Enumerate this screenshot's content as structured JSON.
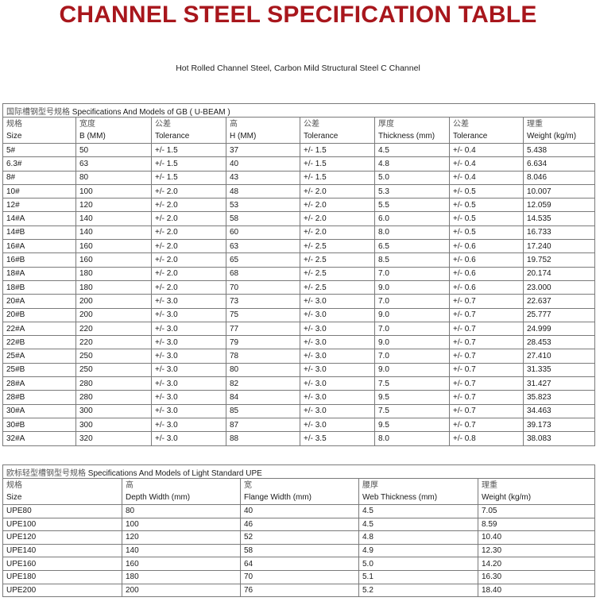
{
  "title": "CHANNEL STEEL SPECIFICATION TABLE",
  "subtitle": "Hot Rolled Channel Steel, Carbon Mild Structural Steel C Channel",
  "gb_table": {
    "caption_zh": "国际槽钢型号规格",
    "caption_en": "Specifications And Models of GB ( U-BEAM )",
    "headers": [
      {
        "zh": "规格",
        "en": "Size"
      },
      {
        "zh": "宽度",
        "en": "B (MM)"
      },
      {
        "zh": "公差",
        "en": "Tolerance"
      },
      {
        "zh": "高",
        "en": "H (MM)"
      },
      {
        "zh": "公差",
        "en": "Tolerance"
      },
      {
        "zh": "厚度",
        "en": "Thickness (mm)"
      },
      {
        "zh": "公差",
        "en": "Tolerance"
      },
      {
        "zh": "理重",
        "en": "Weight (kg/m)"
      }
    ],
    "rows": [
      [
        "5#",
        "50",
        "+/- 1.5",
        "37",
        "+/- 1.5",
        "4.5",
        "+/- 0.4",
        "5.438"
      ],
      [
        "6.3#",
        "63",
        "+/- 1.5",
        "40",
        "+/- 1.5",
        "4.8",
        "+/- 0.4",
        "6.634"
      ],
      [
        "8#",
        "80",
        "+/- 1.5",
        "43",
        "+/- 1.5",
        "5.0",
        "+/- 0.4",
        "8.046"
      ],
      [
        "10#",
        "100",
        "+/- 2.0",
        "48",
        "+/- 2.0",
        "5.3",
        "+/- 0.5",
        "10.007"
      ],
      [
        "12#",
        "120",
        "+/- 2.0",
        "53",
        "+/- 2.0",
        "5.5",
        "+/- 0.5",
        "12.059"
      ],
      [
        "14#A",
        "140",
        "+/- 2.0",
        "58",
        "+/- 2.0",
        "6.0",
        "+/- 0.5",
        "14.535"
      ],
      [
        "14#B",
        "140",
        "+/- 2.0",
        "60",
        "+/- 2.0",
        "8.0",
        "+/- 0.5",
        "16.733"
      ],
      [
        "16#A",
        "160",
        "+/- 2.0",
        "63",
        "+/- 2.5",
        "6.5",
        "+/- 0.6",
        "17.240"
      ],
      [
        "16#B",
        "160",
        "+/- 2.0",
        "65",
        "+/- 2.5",
        "8.5",
        "+/- 0.6",
        "19.752"
      ],
      [
        "18#A",
        "180",
        "+/- 2.0",
        "68",
        "+/- 2.5",
        "7.0",
        "+/- 0.6",
        "20.174"
      ],
      [
        "18#B",
        "180",
        "+/- 2.0",
        "70",
        "+/- 2.5",
        "9.0",
        "+/- 0.6",
        "23.000"
      ],
      [
        "20#A",
        "200",
        "+/- 3.0",
        "73",
        "+/- 3.0",
        "7.0",
        "+/- 0.7",
        "22.637"
      ],
      [
        "20#B",
        "200",
        "+/- 3.0",
        "75",
        "+/- 3.0",
        "9.0",
        "+/- 0.7",
        "25.777"
      ],
      [
        "22#A",
        "220",
        "+/- 3.0",
        "77",
        "+/- 3.0",
        "7.0",
        "+/- 0.7",
        "24.999"
      ],
      [
        "22#B",
        "220",
        "+/- 3.0",
        "79",
        "+/- 3.0",
        "9.0",
        "+/- 0.7",
        "28.453"
      ],
      [
        "25#A",
        "250",
        "+/- 3.0",
        "78",
        "+/- 3.0",
        "7.0",
        "+/- 0.7",
        "27.410"
      ],
      [
        "25#B",
        "250",
        "+/- 3.0",
        "80",
        "+/- 3.0",
        "9.0",
        "+/- 0.7",
        "31.335"
      ],
      [
        "28#A",
        "280",
        "+/- 3.0",
        "82",
        "+/- 3.0",
        "7.5",
        "+/- 0.7",
        "31.427"
      ],
      [
        "28#B",
        "280",
        "+/- 3.0",
        "84",
        "+/- 3.0",
        "9.5",
        "+/- 0.7",
        "35.823"
      ],
      [
        "30#A",
        "300",
        "+/- 3.0",
        "85",
        "+/- 3.0",
        "7.5",
        "+/- 0.7",
        "34.463"
      ],
      [
        "30#B",
        "300",
        "+/- 3.0",
        "87",
        "+/- 3.0",
        "9.5",
        "+/- 0.7",
        "39.173"
      ],
      [
        "32#A",
        "320",
        "+/- 3.0",
        "88",
        "+/- 3.5",
        "8.0",
        "+/- 0.8",
        "38.083"
      ]
    ]
  },
  "upe_table": {
    "caption_zh": "欧标轻型槽钢型号规格",
    "caption_en": "Specifications And Models of Light Standard UPE",
    "headers": [
      {
        "zh": "规格",
        "en": "Size"
      },
      {
        "zh": "高",
        "en": "Depth Width (mm)"
      },
      {
        "zh": "宽",
        "en": "Flange Width (mm)"
      },
      {
        "zh": "腰厚",
        "en": "Web Thickness (mm)"
      },
      {
        "zh": "理重",
        "en": "Weight (kg/m)"
      }
    ],
    "rows": [
      [
        "UPE80",
        "80",
        "40",
        "4.5",
        "7.05"
      ],
      [
        "UPE100",
        "100",
        "46",
        "4.5",
        "8.59"
      ],
      [
        "UPE120",
        "120",
        "52",
        "4.8",
        "10.40"
      ],
      [
        "UPE140",
        "140",
        "58",
        "4.9",
        "12.30"
      ],
      [
        "UPE160",
        "160",
        "64",
        "5.0",
        "14.20"
      ],
      [
        "UPE180",
        "180",
        "70",
        "5.1",
        "16.30"
      ],
      [
        "UPE200",
        "200",
        "76",
        "5.2",
        "18.40"
      ]
    ]
  },
  "colors": {
    "title": "#a8161c",
    "border": "#7a7a7a"
  }
}
